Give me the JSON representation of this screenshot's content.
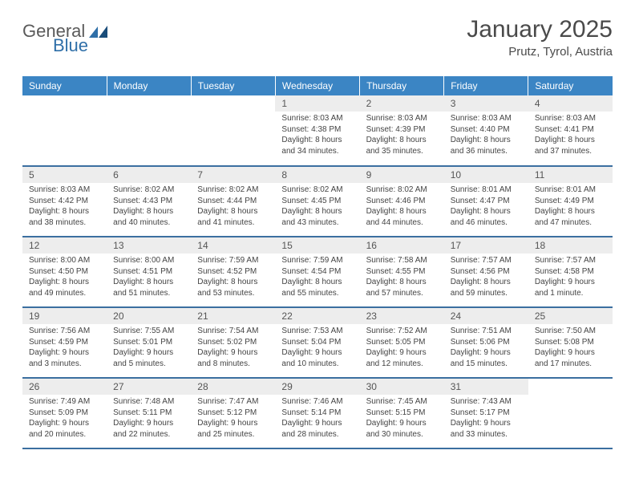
{
  "logo": {
    "text1": "General",
    "text2": "Blue"
  },
  "title": "January 2025",
  "location": "Prutz, Tyrol, Austria",
  "colors": {
    "header_bg": "#3b85c4",
    "header_text": "#ffffff",
    "daynum_bg": "#ededed",
    "daynum_text": "#555555",
    "body_text": "#444444",
    "rule": "#3b6fa0",
    "logo_gray": "#5a5a5a",
    "logo_blue": "#2f6fa8"
  },
  "dayHeaders": [
    "Sunday",
    "Monday",
    "Tuesday",
    "Wednesday",
    "Thursday",
    "Friday",
    "Saturday"
  ],
  "weeks": [
    [
      {
        "n": "",
        "sunrise": "",
        "sunset": "",
        "daylight": ""
      },
      {
        "n": "",
        "sunrise": "",
        "sunset": "",
        "daylight": ""
      },
      {
        "n": "",
        "sunrise": "",
        "sunset": "",
        "daylight": ""
      },
      {
        "n": "1",
        "sunrise": "Sunrise: 8:03 AM",
        "sunset": "Sunset: 4:38 PM",
        "daylight": "Daylight: 8 hours and 34 minutes."
      },
      {
        "n": "2",
        "sunrise": "Sunrise: 8:03 AM",
        "sunset": "Sunset: 4:39 PM",
        "daylight": "Daylight: 8 hours and 35 minutes."
      },
      {
        "n": "3",
        "sunrise": "Sunrise: 8:03 AM",
        "sunset": "Sunset: 4:40 PM",
        "daylight": "Daylight: 8 hours and 36 minutes."
      },
      {
        "n": "4",
        "sunrise": "Sunrise: 8:03 AM",
        "sunset": "Sunset: 4:41 PM",
        "daylight": "Daylight: 8 hours and 37 minutes."
      }
    ],
    [
      {
        "n": "5",
        "sunrise": "Sunrise: 8:03 AM",
        "sunset": "Sunset: 4:42 PM",
        "daylight": "Daylight: 8 hours and 38 minutes."
      },
      {
        "n": "6",
        "sunrise": "Sunrise: 8:02 AM",
        "sunset": "Sunset: 4:43 PM",
        "daylight": "Daylight: 8 hours and 40 minutes."
      },
      {
        "n": "7",
        "sunrise": "Sunrise: 8:02 AM",
        "sunset": "Sunset: 4:44 PM",
        "daylight": "Daylight: 8 hours and 41 minutes."
      },
      {
        "n": "8",
        "sunrise": "Sunrise: 8:02 AM",
        "sunset": "Sunset: 4:45 PM",
        "daylight": "Daylight: 8 hours and 43 minutes."
      },
      {
        "n": "9",
        "sunrise": "Sunrise: 8:02 AM",
        "sunset": "Sunset: 4:46 PM",
        "daylight": "Daylight: 8 hours and 44 minutes."
      },
      {
        "n": "10",
        "sunrise": "Sunrise: 8:01 AM",
        "sunset": "Sunset: 4:47 PM",
        "daylight": "Daylight: 8 hours and 46 minutes."
      },
      {
        "n": "11",
        "sunrise": "Sunrise: 8:01 AM",
        "sunset": "Sunset: 4:49 PM",
        "daylight": "Daylight: 8 hours and 47 minutes."
      }
    ],
    [
      {
        "n": "12",
        "sunrise": "Sunrise: 8:00 AM",
        "sunset": "Sunset: 4:50 PM",
        "daylight": "Daylight: 8 hours and 49 minutes."
      },
      {
        "n": "13",
        "sunrise": "Sunrise: 8:00 AM",
        "sunset": "Sunset: 4:51 PM",
        "daylight": "Daylight: 8 hours and 51 minutes."
      },
      {
        "n": "14",
        "sunrise": "Sunrise: 7:59 AM",
        "sunset": "Sunset: 4:52 PM",
        "daylight": "Daylight: 8 hours and 53 minutes."
      },
      {
        "n": "15",
        "sunrise": "Sunrise: 7:59 AM",
        "sunset": "Sunset: 4:54 PM",
        "daylight": "Daylight: 8 hours and 55 minutes."
      },
      {
        "n": "16",
        "sunrise": "Sunrise: 7:58 AM",
        "sunset": "Sunset: 4:55 PM",
        "daylight": "Daylight: 8 hours and 57 minutes."
      },
      {
        "n": "17",
        "sunrise": "Sunrise: 7:57 AM",
        "sunset": "Sunset: 4:56 PM",
        "daylight": "Daylight: 8 hours and 59 minutes."
      },
      {
        "n": "18",
        "sunrise": "Sunrise: 7:57 AM",
        "sunset": "Sunset: 4:58 PM",
        "daylight": "Daylight: 9 hours and 1 minute."
      }
    ],
    [
      {
        "n": "19",
        "sunrise": "Sunrise: 7:56 AM",
        "sunset": "Sunset: 4:59 PM",
        "daylight": "Daylight: 9 hours and 3 minutes."
      },
      {
        "n": "20",
        "sunrise": "Sunrise: 7:55 AM",
        "sunset": "Sunset: 5:01 PM",
        "daylight": "Daylight: 9 hours and 5 minutes."
      },
      {
        "n": "21",
        "sunrise": "Sunrise: 7:54 AM",
        "sunset": "Sunset: 5:02 PM",
        "daylight": "Daylight: 9 hours and 8 minutes."
      },
      {
        "n": "22",
        "sunrise": "Sunrise: 7:53 AM",
        "sunset": "Sunset: 5:04 PM",
        "daylight": "Daylight: 9 hours and 10 minutes."
      },
      {
        "n": "23",
        "sunrise": "Sunrise: 7:52 AM",
        "sunset": "Sunset: 5:05 PM",
        "daylight": "Daylight: 9 hours and 12 minutes."
      },
      {
        "n": "24",
        "sunrise": "Sunrise: 7:51 AM",
        "sunset": "Sunset: 5:06 PM",
        "daylight": "Daylight: 9 hours and 15 minutes."
      },
      {
        "n": "25",
        "sunrise": "Sunrise: 7:50 AM",
        "sunset": "Sunset: 5:08 PM",
        "daylight": "Daylight: 9 hours and 17 minutes."
      }
    ],
    [
      {
        "n": "26",
        "sunrise": "Sunrise: 7:49 AM",
        "sunset": "Sunset: 5:09 PM",
        "daylight": "Daylight: 9 hours and 20 minutes."
      },
      {
        "n": "27",
        "sunrise": "Sunrise: 7:48 AM",
        "sunset": "Sunset: 5:11 PM",
        "daylight": "Daylight: 9 hours and 22 minutes."
      },
      {
        "n": "28",
        "sunrise": "Sunrise: 7:47 AM",
        "sunset": "Sunset: 5:12 PM",
        "daylight": "Daylight: 9 hours and 25 minutes."
      },
      {
        "n": "29",
        "sunrise": "Sunrise: 7:46 AM",
        "sunset": "Sunset: 5:14 PM",
        "daylight": "Daylight: 9 hours and 28 minutes."
      },
      {
        "n": "30",
        "sunrise": "Sunrise: 7:45 AM",
        "sunset": "Sunset: 5:15 PM",
        "daylight": "Daylight: 9 hours and 30 minutes."
      },
      {
        "n": "31",
        "sunrise": "Sunrise: 7:43 AM",
        "sunset": "Sunset: 5:17 PM",
        "daylight": "Daylight: 9 hours and 33 minutes."
      },
      {
        "n": "",
        "sunrise": "",
        "sunset": "",
        "daylight": ""
      }
    ]
  ]
}
